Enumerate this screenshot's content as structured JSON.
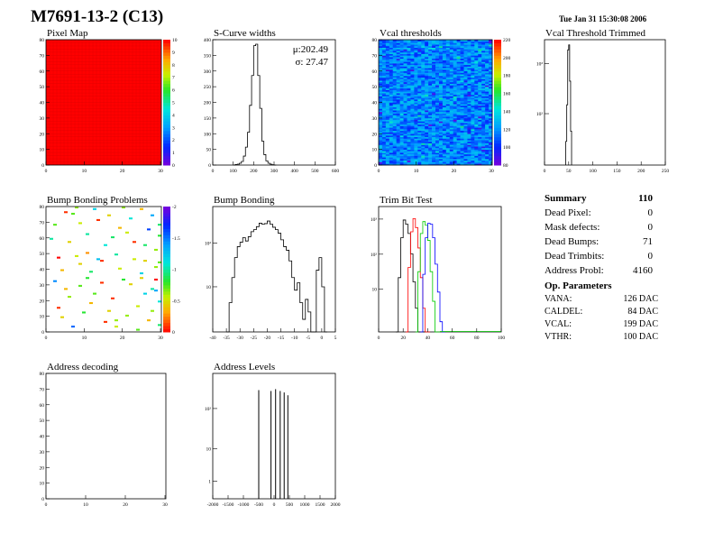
{
  "page": {
    "title": "M7691-13-2 (C13)",
    "date": "Tue Jan 31 15:30:08 2006"
  },
  "colors": {
    "pixelmap_fill": "#ff0000",
    "line": "#000000",
    "trim_series": [
      "#000000",
      "#ff0000",
      "#00cc00",
      "#0000ff"
    ]
  },
  "chart_data": [
    {
      "id": "pixel_map",
      "type": "heatmap",
      "title": "Pixel Map",
      "xlim": [
        0,
        32
      ],
      "ylim": [
        0,
        80
      ],
      "xticks": [
        "0",
        "10",
        "20",
        "30"
      ],
      "yticks": [
        "0",
        "10",
        "20",
        "30",
        "40",
        "50",
        "60",
        "70",
        "80"
      ],
      "zticks": [
        "0",
        "1",
        "2",
        "3",
        "4",
        "5",
        "6",
        "7",
        "8",
        "9",
        "10"
      ],
      "zrange": [
        0,
        10
      ],
      "uniform_value": 10
    },
    {
      "id": "scurve_widths",
      "type": "line",
      "title": "S-Curve widths",
      "xlim": [
        0,
        600
      ],
      "ylim": [
        0,
        420
      ],
      "xticks": [
        "0",
        "100",
        "200",
        "300",
        "400",
        "500",
        "600"
      ],
      "yticks": [
        "0",
        "50",
        "100",
        "150",
        "200",
        "250",
        "300",
        "350",
        "400"
      ],
      "stats": [
        "μ:202.49",
        "σ: 27.47"
      ],
      "x": [
        100,
        110,
        120,
        130,
        140,
        150,
        160,
        170,
        180,
        190,
        200,
        210,
        220,
        230,
        240,
        250,
        260,
        270,
        280,
        290,
        300
      ],
      "y": [
        0,
        2,
        3,
        6,
        12,
        30,
        60,
        110,
        200,
        300,
        400,
        405,
        300,
        190,
        80,
        35,
        14,
        6,
        3,
        1,
        0
      ]
    },
    {
      "id": "vcal_thresholds",
      "type": "heatmap",
      "title": "Vcal thresholds",
      "xlim": [
        0,
        32
      ],
      "ylim": [
        0,
        80
      ],
      "xticks": [
        "0",
        "10",
        "20",
        "30"
      ],
      "yticks": [
        "0",
        "10",
        "20",
        "30",
        "40",
        "50",
        "60",
        "70",
        "80"
      ],
      "zticks": [
        "80",
        "100",
        "120",
        "140",
        "160",
        "180",
        "200",
        "220"
      ],
      "zrange": [
        70,
        240
      ],
      "mean_value": 115
    },
    {
      "id": "vcal_threshold_trimmed",
      "type": "bar",
      "title": "Vcal Threshold Trimmed",
      "xlim": [
        0,
        250
      ],
      "ylim_log": [
        1,
        5000
      ],
      "xticks": [
        "0",
        "50",
        "100",
        "150",
        "200",
        "250"
      ],
      "yticks": [
        "10²",
        "10³"
      ],
      "x": [
        44,
        46,
        48,
        50,
        52,
        54
      ],
      "values": [
        5,
        60,
        2500,
        3500,
        300,
        10
      ]
    },
    {
      "id": "bump_bonding_problems",
      "type": "heatmap",
      "title": "Bump Bonding Problems",
      "xlim": [
        0,
        32
      ],
      "ylim": [
        0,
        80
      ],
      "xticks": [
        "0",
        "10",
        "20",
        "30"
      ],
      "yticks": [
        "0",
        "10",
        "20",
        "30",
        "40",
        "50",
        "60",
        "70",
        "80"
      ],
      "zticks": [
        "0",
        "-0.5",
        "-1",
        "-1.5",
        "-2"
      ],
      "zrange": [
        -2,
        0.2
      ],
      "points": [
        [
          5,
          76,
          0.1
        ],
        [
          7,
          75,
          -0.6
        ],
        [
          9,
          69,
          -0.4
        ],
        [
          13,
          78,
          -1.1
        ],
        [
          17,
          74,
          -0.3
        ],
        [
          21,
          79,
          -0.5
        ],
        [
          26,
          78,
          -0.2
        ],
        [
          29,
          74,
          -1.3
        ],
        [
          31,
          68,
          -0.8
        ],
        [
          2,
          68,
          -0.6
        ],
        [
          11,
          62,
          -0.9
        ],
        [
          22,
          63,
          -0.4
        ],
        [
          28,
          65,
          -1.6
        ],
        [
          31,
          61,
          -0.7
        ],
        [
          6,
          57,
          -0.3
        ],
        [
          16,
          55,
          -1.0
        ],
        [
          24,
          57,
          0.1
        ],
        [
          30,
          52,
          -0.5
        ],
        [
          3,
          47,
          0.2
        ],
        [
          8,
          48,
          -0.4
        ],
        [
          14,
          46,
          -1.2
        ],
        [
          19,
          49,
          -0.9
        ],
        [
          27,
          45,
          -0.3
        ],
        [
          31,
          44,
          -0.6
        ],
        [
          4,
          39,
          -0.2
        ],
        [
          12,
          38,
          -0.8
        ],
        [
          20,
          40,
          -0.4
        ],
        [
          26,
          37,
          -1.1
        ],
        [
          30,
          41,
          -0.5
        ],
        [
          2,
          32,
          -1.4
        ],
        [
          9,
          29,
          -0.6
        ],
        [
          15,
          31,
          0.1
        ],
        [
          23,
          30,
          -0.3
        ],
        [
          29,
          27,
          -0.9
        ],
        [
          6,
          22,
          -0.5
        ],
        [
          12,
          18,
          -0.2
        ],
        [
          18,
          21,
          0.1
        ],
        [
          25,
          16,
          -0.4
        ],
        [
          31,
          19,
          -1.0
        ],
        [
          4,
          9,
          -0.3
        ],
        [
          10,
          12,
          -0.7
        ],
        [
          16,
          6,
          0.1
        ],
        [
          22,
          10,
          -0.5
        ],
        [
          28,
          7,
          -0.2
        ],
        [
          31,
          4,
          -0.8
        ],
        [
          7,
          3,
          -1.5
        ],
        [
          19,
          3,
          -0.4
        ],
        [
          25,
          1,
          -0.6
        ],
        [
          14,
          71,
          0.1
        ],
        [
          20,
          66,
          -0.2
        ],
        [
          8,
          84,
          -0.5
        ],
        [
          27,
          55,
          -0.8
        ],
        [
          11,
          50,
          -0.1
        ],
        [
          21,
          33,
          -0.7
        ],
        [
          17,
          13,
          -0.3
        ],
        [
          30,
          33,
          0.2
        ],
        [
          1,
          59,
          -0.9
        ],
        [
          24,
          46,
          -0.4
        ],
        [
          13,
          24,
          -0.6
        ],
        [
          3,
          15,
          0.1
        ],
        [
          27,
          24,
          -1.1
        ],
        [
          9,
          43,
          -0.3
        ],
        [
          18,
          60,
          -0.8
        ],
        [
          29,
          13,
          -0.5
        ],
        [
          5,
          27,
          -0.2
        ],
        [
          23,
          72,
          -1.0
        ],
        [
          15,
          45,
          0.1
        ],
        [
          26,
          34,
          -0.3
        ],
        [
          11,
          34,
          -0.7
        ],
        [
          19,
          7,
          -0.5
        ],
        [
          30,
          26,
          -1.3
        ]
      ]
    },
    {
      "id": "bump_bonding",
      "type": "line",
      "title": "Bump Bonding",
      "xlim": [
        -40,
        5
      ],
      "ylim_log": [
        1,
        1000
      ],
      "xticks": [
        "-40",
        "-35",
        "-30",
        "-25",
        "-20",
        "-15",
        "-10",
        "-5",
        "0",
        "5"
      ],
      "yticks": [
        "10",
        "10²"
      ],
      "x": [
        -35,
        -34,
        -33,
        -32,
        -31,
        -30,
        -29,
        -28,
        -27,
        -26,
        -25,
        -24,
        -23,
        -22,
        -21,
        -20,
        -19,
        -18,
        -17,
        -16,
        -15,
        -14,
        -13,
        -12,
        -11,
        -10,
        -9,
        -8,
        -7,
        -6,
        -5,
        -4,
        -3,
        -2,
        -1,
        0,
        1
      ],
      "y": [
        1,
        5,
        20,
        60,
        110,
        140,
        180,
        150,
        190,
        250,
        280,
        330,
        400,
        380,
        390,
        450,
        380,
        320,
        280,
        230,
        160,
        110,
        90,
        50,
        20,
        10,
        15,
        5,
        2,
        6,
        3,
        1,
        1,
        30,
        60,
        12,
        1
      ]
    },
    {
      "id": "trim_bit_test",
      "type": "line",
      "title": "Trim Bit Test",
      "xlim": [
        0,
        100
      ],
      "ylim_log": [
        1,
        5000
      ],
      "xticks": [
        "0",
        "20",
        "40",
        "60",
        "80",
        "100"
      ],
      "yticks": [
        "10",
        "10²",
        "10³"
      ],
      "series": [
        {
          "x": [
            14,
            16,
            18,
            20,
            22,
            24,
            26,
            28,
            30,
            32,
            34,
            36
          ],
          "values": [
            1,
            40,
            600,
            2000,
            1500,
            800,
            200,
            30,
            5,
            1,
            1,
            1
          ]
        },
        {
          "x": [
            22,
            24,
            26,
            28,
            30,
            32,
            34,
            36,
            38,
            40
          ],
          "values": [
            1,
            80,
            900,
            2200,
            1200,
            300,
            40,
            5,
            1,
            1
          ]
        },
        {
          "x": [
            30,
            32,
            34,
            36,
            38,
            40,
            42,
            44,
            46,
            48
          ],
          "values": [
            1,
            60,
            800,
            1800,
            1400,
            500,
            60,
            8,
            1,
            1
          ]
        },
        {
          "x": [
            34,
            36,
            38,
            40,
            42,
            44,
            46,
            48,
            50,
            52
          ],
          "values": [
            1,
            50,
            600,
            1600,
            1500,
            600,
            100,
            15,
            2,
            1
          ]
        }
      ]
    },
    {
      "id": "address_decoding",
      "type": "heatmap",
      "title": "Address decoding",
      "xlim": [
        0,
        32
      ],
      "ylim": [
        0,
        80
      ],
      "xticks": [
        "0",
        "10",
        "20",
        "30"
      ],
      "yticks": [
        "0",
        "10",
        "20",
        "30",
        "40",
        "50",
        "60",
        "70",
        "80"
      ]
    },
    {
      "id": "address_levels",
      "type": "bar",
      "title": "Address Levels",
      "xlim": [
        -2000,
        2000
      ],
      "ylim_log": [
        1,
        1000
      ],
      "xticks": [
        "-2000",
        "-1500",
        "-1000",
        "-500",
        "0",
        "500",
        "1000",
        "1500",
        "2000"
      ],
      "yticks": [
        "1",
        "10",
        "10²"
      ],
      "x": [
        -500,
        -100,
        50,
        200,
        330,
        450
      ],
      "values": [
        400,
        380,
        420,
        380,
        350,
        300
      ]
    }
  ],
  "summary": {
    "heading": "Summary",
    "heading_value": "110",
    "rows": [
      {
        "label": "Dead Pixel:",
        "value": "0"
      },
      {
        "label": "Mask defects:",
        "value": "0"
      },
      {
        "label": "Dead Bumps:",
        "value": "71"
      },
      {
        "label": "Dead Trimbits:",
        "value": "0"
      },
      {
        "label": "Address Probl:",
        "value": "4160"
      }
    ],
    "op_heading": "Op. Parameters",
    "op_rows": [
      {
        "label": "VANA:",
        "value": "126 DAC"
      },
      {
        "label": "CALDEL:",
        "value": "84 DAC"
      },
      {
        "label": "VCAL:",
        "value": "199 DAC"
      },
      {
        "label": "VTHR:",
        "value": "100 DAC"
      }
    ]
  }
}
